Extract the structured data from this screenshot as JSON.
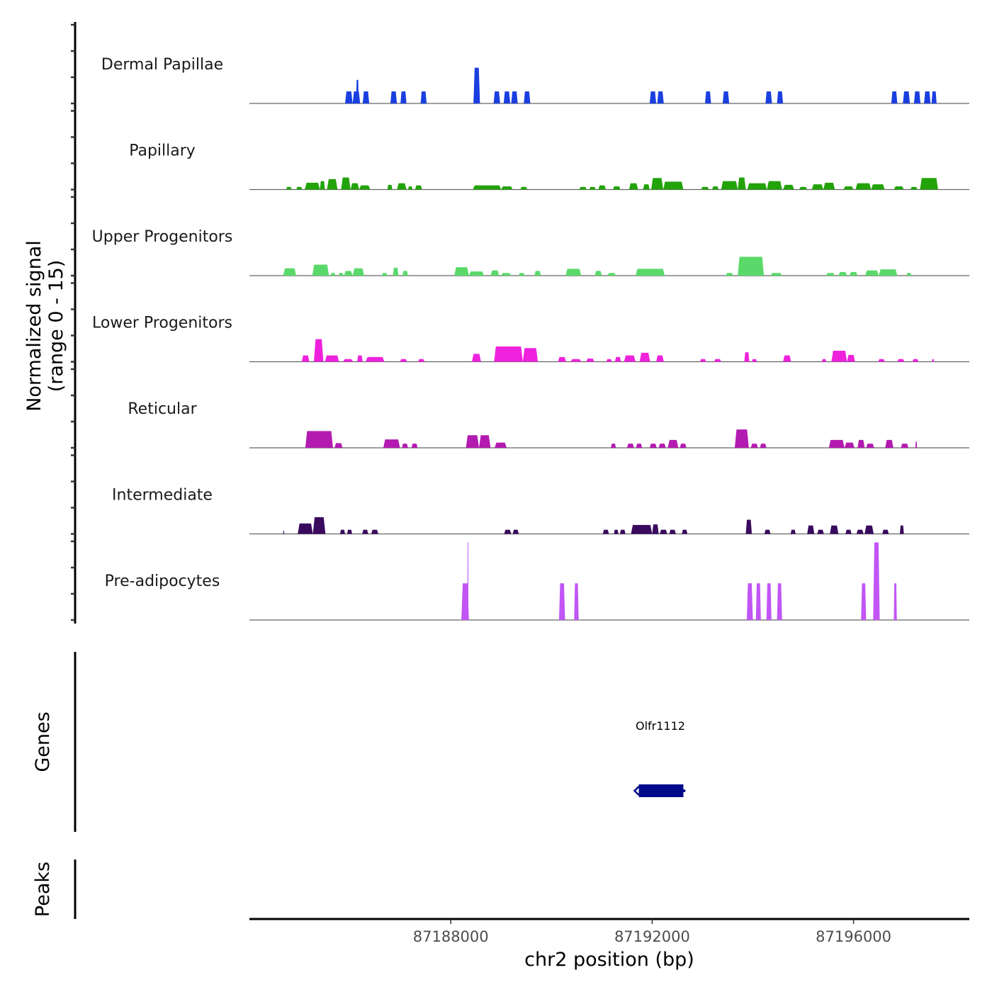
{
  "chart_data": {
    "type": "area",
    "title": "",
    "xlabel": "chr2 position (bp)",
    "ylabel": "Normalized signal\n(range 0 - 15)",
    "ylabel_lines": [
      "Normalized signal",
      "(range 0 - 15)"
    ],
    "xlim": [
      87184000,
      87198300
    ],
    "ylim": [
      0,
      15
    ],
    "x_ticks": [
      87188000,
      87192000,
      87196000
    ],
    "x_tick_labels": [
      "87188000",
      "87192000",
      "87196000"
    ],
    "grid": false,
    "legend": "none",
    "tracks": [
      {
        "name": "Dermal Papillae",
        "color": "#1a3fe0",
        "peaks": [
          [
            87185900,
            87186050,
            2.3
          ],
          [
            87186050,
            87186200,
            2.3
          ],
          [
            87186120,
            87186170,
            4.5
          ],
          [
            87186250,
            87186380,
            2.3
          ],
          [
            87186800,
            87186930,
            2.3
          ],
          [
            87187000,
            87187120,
            2.3
          ],
          [
            87187400,
            87187520,
            2.3
          ],
          [
            87188450,
            87188580,
            6.8
          ],
          [
            87188850,
            87188980,
            2.3
          ],
          [
            87189050,
            87189180,
            2.3
          ],
          [
            87189200,
            87189330,
            2.3
          ],
          [
            87189450,
            87189580,
            2.3
          ],
          [
            87191950,
            87192080,
            2.3
          ],
          [
            87192100,
            87192230,
            2.3
          ],
          [
            87193050,
            87193170,
            2.3
          ],
          [
            87193400,
            87193530,
            2.3
          ],
          [
            87194250,
            87194380,
            2.3
          ],
          [
            87194480,
            87194600,
            2.3
          ],
          [
            87196750,
            87196870,
            2.3
          ],
          [
            87196980,
            87197120,
            2.3
          ],
          [
            87197200,
            87197330,
            2.3
          ],
          [
            87197400,
            87197530,
            2.3
          ],
          [
            87197550,
            87197650,
            2.3
          ]
        ]
      },
      {
        "name": "Papillary",
        "color": "#22a30a",
        "peaks": [
          [
            87184730,
            87184840,
            0.5
          ],
          [
            87184930,
            87185050,
            0.5
          ],
          [
            87185100,
            87185400,
            1.3
          ],
          [
            87185400,
            87185500,
            1.6
          ],
          [
            87185540,
            87185750,
            2.0
          ],
          [
            87185820,
            87186010,
            2.3
          ],
          [
            87186010,
            87186180,
            1.2
          ],
          [
            87186180,
            87186400,
            0.8
          ],
          [
            87186740,
            87186840,
            0.9
          ],
          [
            87186930,
            87187120,
            1.2
          ],
          [
            87187150,
            87187240,
            0.6
          ],
          [
            87187290,
            87187430,
            0.8
          ],
          [
            87188440,
            87189000,
            0.8
          ],
          [
            87189000,
            87189230,
            0.6
          ],
          [
            87189380,
            87189520,
            0.5
          ],
          [
            87190550,
            87190700,
            0.5
          ],
          [
            87190750,
            87190880,
            0.5
          ],
          [
            87190930,
            87191080,
            0.8
          ],
          [
            87191220,
            87191370,
            0.6
          ],
          [
            87191540,
            87191720,
            1.2
          ],
          [
            87191820,
            87191950,
            1.0
          ],
          [
            87191980,
            87192220,
            2.2
          ],
          [
            87192220,
            87192620,
            1.5
          ],
          [
            87192970,
            87193130,
            0.5
          ],
          [
            87193190,
            87193320,
            0.6
          ],
          [
            87193370,
            87193700,
            1.6
          ],
          [
            87193700,
            87193860,
            2.3
          ],
          [
            87193890,
            87194280,
            1.2
          ],
          [
            87194280,
            87194580,
            1.6
          ],
          [
            87194600,
            87194820,
            0.9
          ],
          [
            87194920,
            87195080,
            0.5
          ],
          [
            87195170,
            87195400,
            1.0
          ],
          [
            87195400,
            87195630,
            1.3
          ],
          [
            87195800,
            87196000,
            0.6
          ],
          [
            87196040,
            87196350,
            1.2
          ],
          [
            87196350,
            87196620,
            1.0
          ],
          [
            87196800,
            87197000,
            0.6
          ],
          [
            87197130,
            87197270,
            0.5
          ],
          [
            87197320,
            87197680,
            2.2
          ]
        ]
      },
      {
        "name": "Upper Progenitors",
        "color": "#5ad96a",
        "peaks": [
          [
            87184670,
            87184930,
            1.4
          ],
          [
            87185250,
            87185580,
            2.1
          ],
          [
            87185610,
            87185710,
            0.5
          ],
          [
            87185770,
            87185870,
            0.5
          ],
          [
            87185880,
            87186050,
            0.9
          ],
          [
            87186050,
            87186280,
            1.4
          ],
          [
            87186630,
            87186740,
            0.5
          ],
          [
            87186850,
            87186960,
            1.5
          ],
          [
            87187040,
            87187150,
            0.9
          ],
          [
            87188070,
            87188360,
            1.6
          ],
          [
            87188360,
            87188660,
            0.8
          ],
          [
            87188790,
            87188960,
            1.0
          ],
          [
            87189000,
            87189200,
            0.5
          ],
          [
            87189350,
            87189470,
            0.5
          ],
          [
            87189660,
            87189790,
            0.9
          ],
          [
            87190280,
            87190590,
            1.3
          ],
          [
            87190860,
            87191000,
            0.9
          ],
          [
            87191110,
            87191280,
            0.5
          ],
          [
            87191670,
            87192250,
            1.3
          ],
          [
            87193460,
            87193610,
            0.5
          ],
          [
            87193700,
            87194220,
            3.6
          ],
          [
            87194350,
            87194580,
            0.5
          ],
          [
            87195450,
            87195630,
            0.5
          ],
          [
            87195700,
            87195870,
            0.7
          ],
          [
            87195920,
            87196080,
            0.7
          ],
          [
            87196230,
            87196500,
            1.0
          ],
          [
            87196500,
            87196870,
            1.2
          ],
          [
            87197050,
            87197150,
            0.5
          ]
        ]
      },
      {
        "name": "Lower Progenitors",
        "color": "#ee22dd",
        "peaks": [
          [
            87185040,
            87185190,
            1.2
          ],
          [
            87185280,
            87185470,
            4.3
          ],
          [
            87185500,
            87185780,
            1.2
          ],
          [
            87185860,
            87186060,
            0.5
          ],
          [
            87186140,
            87186250,
            1.2
          ],
          [
            87186310,
            87186680,
            0.9
          ],
          [
            87186990,
            87187130,
            0.5
          ],
          [
            87187350,
            87187480,
            0.5
          ],
          [
            87188420,
            87188600,
            1.5
          ],
          [
            87188860,
            87189430,
            2.9
          ],
          [
            87189430,
            87189730,
            2.6
          ],
          [
            87190130,
            87190290,
            0.9
          ],
          [
            87190380,
            87190590,
            0.5
          ],
          [
            87190690,
            87190850,
            0.6
          ],
          [
            87191090,
            87191200,
            0.5
          ],
          [
            87191260,
            87191380,
            0.9
          ],
          [
            87191440,
            87191670,
            1.2
          ],
          [
            87191750,
            87191960,
            1.7
          ],
          [
            87192080,
            87192230,
            1.2
          ],
          [
            87192950,
            87193070,
            0.5
          ],
          [
            87193230,
            87193370,
            0.5
          ],
          [
            87193830,
            87193930,
            1.8
          ],
          [
            87193980,
            87194080,
            0.5
          ],
          [
            87194600,
            87194760,
            1.2
          ],
          [
            87195370,
            87195460,
            0.5
          ],
          [
            87195560,
            87195870,
            2.1
          ],
          [
            87195870,
            87196030,
            1.3
          ],
          [
            87196490,
            87196620,
            0.5
          ],
          [
            87196870,
            87197010,
            0.5
          ],
          [
            87197170,
            87197290,
            0.5
          ],
          [
            87197560,
            87197600,
            0.5
          ]
        ]
      },
      {
        "name": "Reticular",
        "color": "#b31bb0",
        "peaks": [
          [
            87185110,
            87185660,
            3.2
          ],
          [
            87185690,
            87185850,
            0.9
          ],
          [
            87186660,
            87186990,
            1.6
          ],
          [
            87187030,
            87187150,
            0.8
          ],
          [
            87187220,
            87187340,
            0.8
          ],
          [
            87188300,
            87188560,
            2.4
          ],
          [
            87188560,
            87188790,
            2.4
          ],
          [
            87188870,
            87189110,
            1.0
          ],
          [
            87191180,
            87191280,
            0.8
          ],
          [
            87191500,
            87191640,
            0.8
          ],
          [
            87191680,
            87191800,
            0.8
          ],
          [
            87191950,
            87192090,
            0.8
          ],
          [
            87192130,
            87192270,
            0.8
          ],
          [
            87192310,
            87192520,
            1.5
          ],
          [
            87192550,
            87192680,
            0.8
          ],
          [
            87193640,
            87193920,
            3.5
          ],
          [
            87193960,
            87194100,
            0.8
          ],
          [
            87194140,
            87194270,
            0.8
          ],
          [
            87195510,
            87195820,
            1.5
          ],
          [
            87195820,
            87196020,
            1.0
          ],
          [
            87196080,
            87196220,
            1.5
          ],
          [
            87196250,
            87196410,
            0.8
          ],
          [
            87196630,
            87196790,
            1.5
          ],
          [
            87196940,
            87197090,
            0.8
          ],
          [
            87197230,
            87197260,
            1.2
          ]
        ]
      },
      {
        "name": "Intermediate",
        "color": "#3a0a5e",
        "peaks": [
          [
            87184670,
            87184690,
            0.6
          ],
          [
            87184960,
            87185260,
            2.0
          ],
          [
            87185260,
            87185510,
            3.2
          ],
          [
            87185800,
            87185900,
            0.8
          ],
          [
            87185940,
            87186040,
            0.8
          ],
          [
            87186240,
            87186360,
            0.8
          ],
          [
            87186420,
            87186560,
            0.8
          ],
          [
            87189060,
            87189200,
            0.8
          ],
          [
            87189230,
            87189350,
            0.8
          ],
          [
            87191020,
            87191140,
            0.8
          ],
          [
            87191240,
            87191330,
            0.8
          ],
          [
            87191360,
            87191470,
            0.8
          ],
          [
            87191580,
            87192000,
            1.7
          ],
          [
            87192000,
            87192130,
            1.8
          ],
          [
            87192150,
            87192300,
            0.8
          ],
          [
            87192340,
            87192470,
            0.8
          ],
          [
            87192590,
            87192700,
            0.8
          ],
          [
            87193860,
            87193980,
            2.7
          ],
          [
            87194230,
            87194350,
            0.8
          ],
          [
            87194750,
            87194850,
            0.8
          ],
          [
            87195080,
            87195220,
            1.6
          ],
          [
            87195280,
            87195410,
            0.8
          ],
          [
            87195530,
            87195700,
            1.6
          ],
          [
            87195840,
            87195960,
            0.8
          ],
          [
            87196060,
            87196200,
            0.8
          ],
          [
            87196220,
            87196400,
            1.6
          ],
          [
            87196570,
            87196700,
            0.8
          ],
          [
            87196920,
            87197000,
            1.6
          ]
        ]
      },
      {
        "name": "Pre-adipocytes",
        "color": "#c155f5",
        "peaks": [
          [
            87188210,
            87188360,
            7.0
          ],
          [
            87188330,
            87188350,
            14.8
          ],
          [
            87190150,
            87190270,
            7.0
          ],
          [
            87190450,
            87190540,
            7.0
          ],
          [
            87193880,
            87194000,
            7.0
          ],
          [
            87194060,
            87194160,
            7.0
          ],
          [
            87194270,
            87194370,
            7.0
          ],
          [
            87194480,
            87194580,
            7.0
          ],
          [
            87196150,
            87196250,
            7.0
          ],
          [
            87196390,
            87196520,
            14.8
          ],
          [
            87196800,
            87196860,
            7.0
          ]
        ]
      }
    ],
    "genes": [
      {
        "name": "Olfr1112",
        "start": 87191650,
        "end": 87192620,
        "strand": "-",
        "color": "#000a8a"
      }
    ]
  },
  "panels": {
    "genes_label": "Genes",
    "peaks_label": "Peaks"
  }
}
